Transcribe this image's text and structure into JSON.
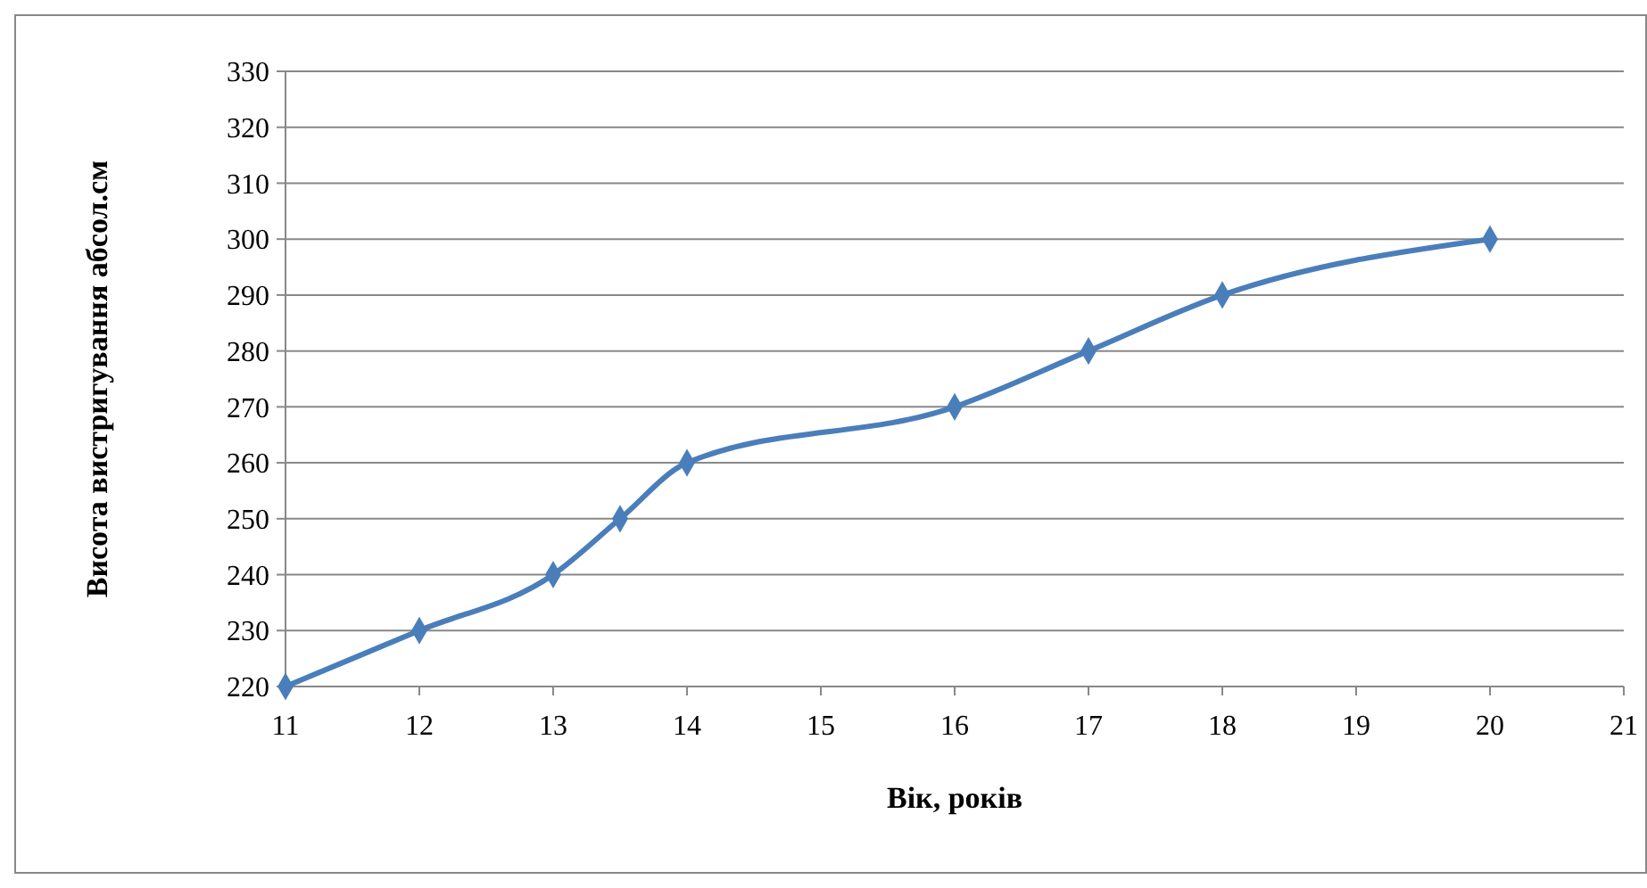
{
  "chart_data": {
    "type": "line",
    "xlabel": "Вік, років",
    "ylabel": "Висота вистригування абсол.см",
    "x": [
      11,
      12,
      13,
      13.5,
      14,
      16,
      17,
      18,
      20
    ],
    "series": [
      {
        "color": "#4a7ebb",
        "values": [
          220,
          230,
          240,
          250,
          260,
          270,
          280,
          290,
          300
        ]
      }
    ],
    "xlim": [
      11,
      21
    ],
    "xticks": [
      11,
      12,
      13,
      14,
      15,
      16,
      17,
      18,
      19,
      20,
      21
    ],
    "ylim": [
      220,
      330
    ],
    "yticks": [
      220,
      230,
      240,
      250,
      260,
      270,
      280,
      290,
      300,
      310,
      320,
      330
    ],
    "grid": "y",
    "marker": "diamond",
    "line_style": "solid"
  }
}
